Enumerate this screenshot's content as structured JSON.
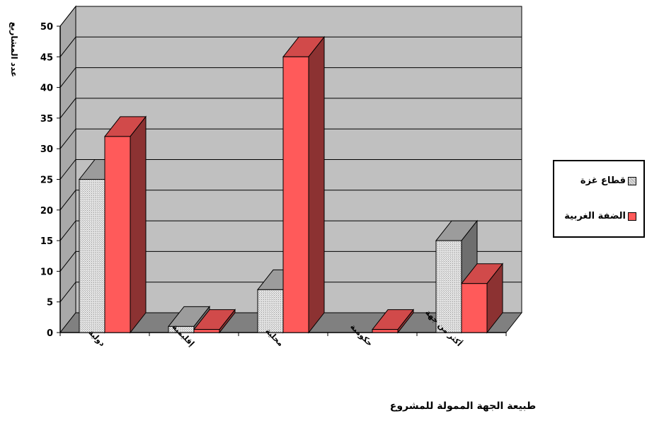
{
  "chart_data": {
    "type": "bar",
    "ylabel": "عدد المشاريع",
    "xlabel": "طبيعة الجهة الممولة للمشروع",
    "ylim": [
      0,
      50
    ],
    "yticks": [
      0,
      5,
      10,
      15,
      20,
      25,
      30,
      35,
      40,
      45,
      50
    ],
    "categories": [
      "دولية",
      "إقليمية",
      "محلية",
      "حكومية",
      "أكثر من جهة"
    ],
    "series": [
      {
        "name": "قطاع غزة",
        "values": [
          25,
          1,
          7,
          0,
          15
        ],
        "color": "#c8c8c8"
      },
      {
        "name": "الضفة الغربية",
        "values": [
          32,
          0.5,
          45,
          0.5,
          8
        ],
        "color": "#ff5a5a"
      }
    ],
    "grid": true,
    "legend": "right",
    "style": "3d-clustered-column"
  },
  "colors": {
    "wall": "#c0c0c0",
    "floor": "#808080",
    "side_wall": "#a9a9a9"
  }
}
